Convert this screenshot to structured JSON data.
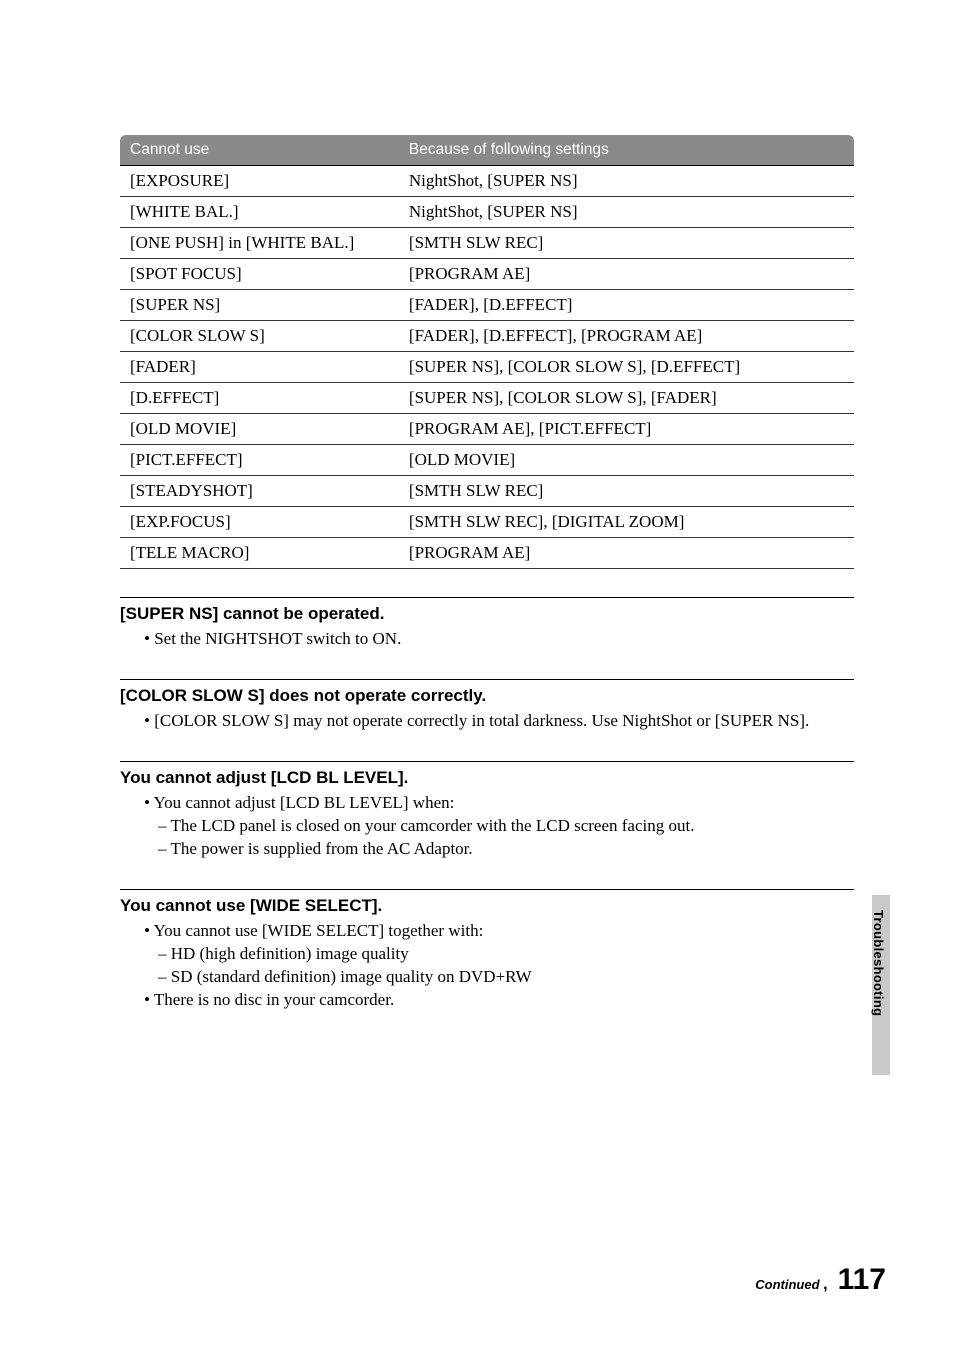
{
  "table": {
    "headers": [
      "Cannot use",
      "Because of following settings"
    ],
    "rows": [
      [
        "[EXPOSURE]",
        "NightShot, [SUPER NS]"
      ],
      [
        "[WHITE BAL.]",
        "NightShot, [SUPER NS]"
      ],
      [
        "[ONE PUSH] in [WHITE BAL.]",
        "[SMTH SLW REC]"
      ],
      [
        "[SPOT FOCUS]",
        "[PROGRAM AE]"
      ],
      [
        "[SUPER NS]",
        "[FADER], [D.EFFECT]"
      ],
      [
        "[COLOR SLOW S]",
        "[FADER], [D.EFFECT], [PROGRAM AE]"
      ],
      [
        "[FADER]",
        "[SUPER NS], [COLOR SLOW S], [D.EFFECT]"
      ],
      [
        "[D.EFFECT]",
        "[SUPER NS], [COLOR SLOW S], [FADER]"
      ],
      [
        "[OLD MOVIE]",
        "[PROGRAM AE], [PICT.EFFECT]"
      ],
      [
        "[PICT.EFFECT]",
        "[OLD MOVIE]"
      ],
      [
        "[STEADYSHOT]",
        "[SMTH SLW REC]"
      ],
      [
        "[EXP.FOCUS]",
        "[SMTH SLW REC], [DIGITAL ZOOM]"
      ],
      [
        "[TELE MACRO]",
        "[PROGRAM AE]"
      ]
    ]
  },
  "sections": {
    "s1": {
      "title": "[SUPER NS] cannot be operated.",
      "b1": "Set the NIGHTSHOT switch to ON."
    },
    "s2": {
      "title": "[COLOR SLOW S] does not operate correctly.",
      "b1": "[COLOR SLOW S] may not operate correctly in total darkness. Use NightShot or [SUPER NS]."
    },
    "s3": {
      "title": "You cannot adjust [LCD BL LEVEL].",
      "b1": "You cannot adjust [LCD BL LEVEL] when:",
      "sub1": "The LCD panel is closed on your camcorder with the LCD screen facing out.",
      "sub2": "The power is supplied from the AC Adaptor."
    },
    "s4": {
      "title": "You cannot use [WIDE SELECT].",
      "b1": "You cannot use [WIDE SELECT] together with:",
      "sub1": "HD (high definition) image quality",
      "sub2": "SD (standard definition) image quality on DVD+RW",
      "b2": "There is no disc in your camcorder."
    }
  },
  "sidetab": "Troubleshooting",
  "footer": {
    "continued": "Continued",
    "arrow": ",",
    "page": "117"
  },
  "colors": {
    "header_bg": "#8a8a8a",
    "header_text": "#ffffff",
    "sidetab_bg": "#c9c9c9",
    "text": "#000000",
    "background": "#ffffff"
  }
}
